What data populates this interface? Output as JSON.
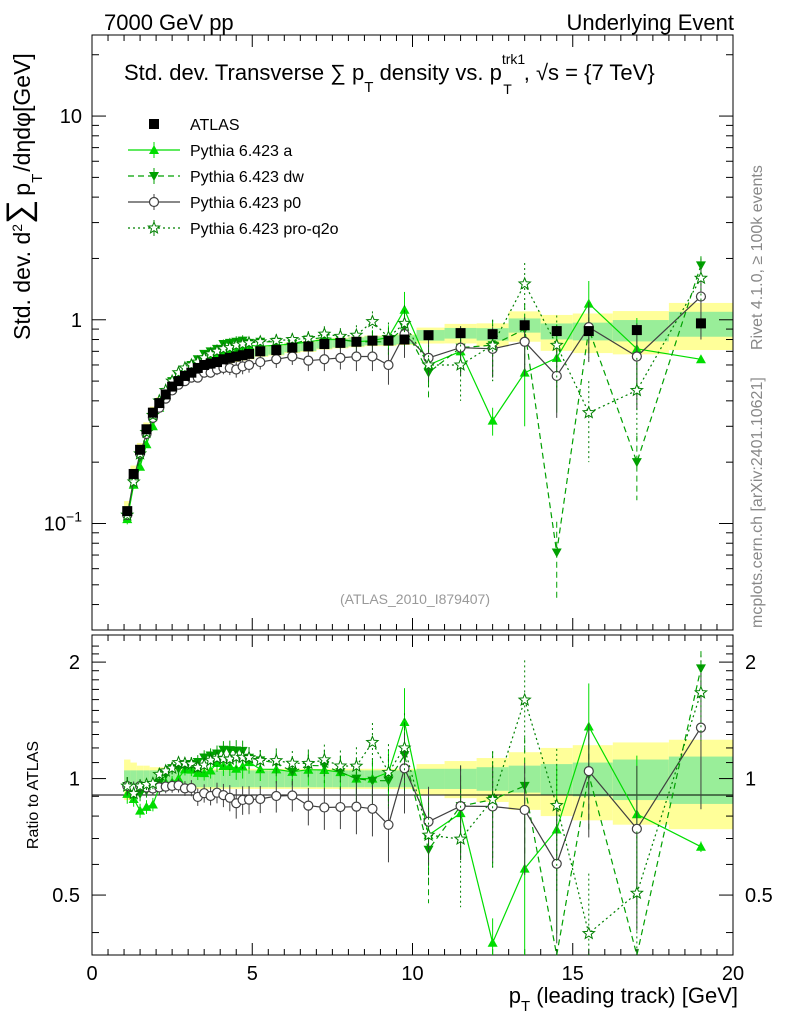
{
  "header": {
    "left": "7000 GeV pp",
    "right": "Underlying Event"
  },
  "side_labels": {
    "rivet": "Rivet 4.1.0, ≥ 100k events",
    "mcplots": "mcplots.cern.ch [arXiv:2401.10621]"
  },
  "analysis_id": "(ATLAS_2010_I879407)",
  "chart_data": {
    "type": "line",
    "title": {
      "main": "Std. dev. Transverse ∑ p",
      "sub": "T",
      "mid": " density vs. p",
      "sup": "trk1",
      "sub2": "T",
      "tail": ", √s = {7 TeV}"
    },
    "ylabel": "Std. dev. d² ∑ p_T /dηdφ[GeV]",
    "ylabel_parts": {
      "a": "Std. dev. d",
      "b": "2",
      "c": "∑",
      "d": "p",
      "e": "T",
      "f": "/dηdφ[GeV]"
    },
    "xlabel": {
      "p": "p",
      "sub": "T",
      "rest": " (leading track) [GeV]"
    },
    "ratio_ylabel": "Ratio to ATLAS",
    "xlim": [
      0,
      20
    ],
    "ylim": [
      0.03,
      25
    ],
    "ratio_ylim": [
      0.35,
      2.35
    ],
    "x_ticks": [
      "0",
      "5",
      "10",
      "15",
      "20"
    ],
    "y_ticks": [
      {
        "v": 0.1,
        "base": "10",
        "exp": "−1"
      },
      {
        "v": 1,
        "base": "1",
        "exp": ""
      },
      {
        "v": 10,
        "base": "10",
        "exp": ""
      }
    ],
    "ratio_ticks": [
      {
        "v": 0.5,
        "label": "0.5"
      },
      {
        "v": 1,
        "label": "1"
      },
      {
        "v": 2,
        "label": "2"
      }
    ],
    "x": [
      1.1,
      1.3,
      1.5,
      1.7,
      1.9,
      2.1,
      2.3,
      2.5,
      2.7,
      2.9,
      3.1,
      3.3,
      3.5,
      3.7,
      3.9,
      4.1,
      4.3,
      4.5,
      4.7,
      4.9,
      5.25,
      5.75,
      6.25,
      6.75,
      7.25,
      7.75,
      8.25,
      8.75,
      9.25,
      9.75,
      10.5,
      11.5,
      12.5,
      13.5,
      14.5,
      15.5,
      17.0,
      19.0
    ],
    "data": {
      "name": "ATLAS",
      "values": [
        0.115,
        0.175,
        0.23,
        0.29,
        0.35,
        0.39,
        0.43,
        0.47,
        0.5,
        0.53,
        0.55,
        0.58,
        0.6,
        0.61,
        0.62,
        0.64,
        0.65,
        0.66,
        0.67,
        0.68,
        0.7,
        0.71,
        0.73,
        0.74,
        0.76,
        0.77,
        0.78,
        0.79,
        0.79,
        0.8,
        0.84,
        0.86,
        0.85,
        0.94,
        0.88,
        0.88,
        0.89,
        0.96
      ],
      "band_inner": [
        0.05,
        0.05,
        0.05,
        0.05,
        0.05,
        0.05,
        0.05,
        0.05,
        0.05,
        0.05,
        0.05,
        0.05,
        0.05,
        0.05,
        0.05,
        0.05,
        0.05,
        0.05,
        0.05,
        0.05,
        0.05,
        0.05,
        0.05,
        0.05,
        0.05,
        0.05,
        0.05,
        0.05,
        0.05,
        0.05,
        0.06,
        0.06,
        0.07,
        0.08,
        0.09,
        0.1,
        0.12,
        0.14
      ],
      "band_outer": [
        0.12,
        0.1,
        0.08,
        0.08,
        0.07,
        0.07,
        0.07,
        0.06,
        0.06,
        0.06,
        0.06,
        0.06,
        0.06,
        0.06,
        0.06,
        0.06,
        0.06,
        0.06,
        0.06,
        0.06,
        0.06,
        0.06,
        0.06,
        0.06,
        0.06,
        0.06,
        0.06,
        0.06,
        0.06,
        0.06,
        0.09,
        0.11,
        0.13,
        0.17,
        0.2,
        0.22,
        0.24,
        0.26
      ],
      "style": {
        "color": "#000000",
        "marker": "square"
      }
    },
    "series": [
      {
        "name": "Pythia 6.423 a",
        "color": "#00dd00",
        "dash": "",
        "marker": "triangle-up",
        "fill": true,
        "values": [
          0.105,
          0.155,
          0.19,
          0.245,
          0.3,
          0.37,
          0.42,
          0.46,
          0.5,
          0.56,
          0.58,
          0.6,
          0.62,
          0.64,
          0.68,
          0.69,
          0.7,
          0.7,
          0.72,
          0.75,
          0.74,
          0.75,
          0.76,
          0.78,
          0.8,
          0.8,
          0.78,
          0.79,
          0.82,
          1.12,
          0.6,
          0.7,
          0.32,
          0.55,
          0.65,
          1.2,
          0.72,
          0.64
        ],
        "errors": [
          0.006,
          0.007,
          0.008,
          0.01,
          0.012,
          0.014,
          0.015,
          0.017,
          0.02,
          0.02,
          0.022,
          0.025,
          0.027,
          0.03,
          0.035,
          0.04,
          0.04,
          0.045,
          0.05,
          0.05,
          0.05,
          0.06,
          0.06,
          0.07,
          0.08,
          0.08,
          0.09,
          0.1,
          0.12,
          0.25,
          0.12,
          0.15,
          0.05,
          0.25,
          0.3,
          0.35,
          0.3,
          0.02
        ]
      },
      {
        "name": "Pythia 6.423 dw",
        "color": "#00a000",
        "dash": "6,4",
        "marker": "triangle-down",
        "fill": true,
        "values": [
          0.11,
          0.16,
          0.21,
          0.27,
          0.33,
          0.38,
          0.44,
          0.5,
          0.53,
          0.57,
          0.6,
          0.64,
          0.68,
          0.7,
          0.72,
          0.76,
          0.77,
          0.78,
          0.79,
          0.77,
          0.78,
          0.78,
          0.76,
          0.8,
          0.82,
          0.8,
          0.78,
          0.78,
          0.78,
          0.92,
          0.55,
          0.73,
          0.75,
          0.9,
          0.072,
          0.9,
          0.2,
          1.85
        ],
        "errors": [
          0.006,
          0.007,
          0.009,
          0.011,
          0.013,
          0.015,
          0.016,
          0.018,
          0.02,
          0.022,
          0.025,
          0.027,
          0.03,
          0.03,
          0.035,
          0.04,
          0.045,
          0.05,
          0.05,
          0.05,
          0.05,
          0.06,
          0.06,
          0.07,
          0.08,
          0.08,
          0.1,
          0.1,
          0.12,
          0.2,
          0.15,
          0.2,
          0.25,
          0.3,
          0.03,
          0.25,
          0.07,
          0.2
        ]
      },
      {
        "name": "Pythia 6.423 p0",
        "color": "#404040",
        "dash": "",
        "marker": "circle",
        "fill": false,
        "values": [
          0.11,
          0.165,
          0.22,
          0.275,
          0.33,
          0.37,
          0.41,
          0.45,
          0.48,
          0.5,
          0.52,
          0.52,
          0.55,
          0.55,
          0.57,
          0.58,
          0.58,
          0.57,
          0.59,
          0.6,
          0.62,
          0.64,
          0.66,
          0.63,
          0.64,
          0.65,
          0.66,
          0.66,
          0.6,
          0.85,
          0.65,
          0.73,
          0.72,
          0.78,
          0.53,
          0.92,
          0.66,
          1.3
        ],
        "errors": [
          0.006,
          0.007,
          0.009,
          0.011,
          0.013,
          0.015,
          0.016,
          0.018,
          0.02,
          0.022,
          0.025,
          0.027,
          0.03,
          0.03,
          0.035,
          0.04,
          0.045,
          0.05,
          0.05,
          0.05,
          0.05,
          0.06,
          0.06,
          0.07,
          0.08,
          0.08,
          0.1,
          0.1,
          0.12,
          0.2,
          0.15,
          0.2,
          0.2,
          0.25,
          0.2,
          0.3,
          0.3,
          0.5
        ]
      },
      {
        "name": "Pythia 6.423 pro-q2o",
        "color": "#008000",
        "dash": "2,3",
        "marker": "star",
        "fill": false,
        "values": [
          0.11,
          0.16,
          0.22,
          0.28,
          0.34,
          0.4,
          0.45,
          0.5,
          0.55,
          0.58,
          0.6,
          0.62,
          0.65,
          0.68,
          0.7,
          0.72,
          0.73,
          0.75,
          0.76,
          0.77,
          0.78,
          0.79,
          0.8,
          0.81,
          0.85,
          0.83,
          0.84,
          0.98,
          0.82,
          0.96,
          0.6,
          0.6,
          0.75,
          1.5,
          0.75,
          0.35,
          0.45,
          1.6
        ],
        "errors": [
          0.006,
          0.007,
          0.009,
          0.011,
          0.013,
          0.015,
          0.016,
          0.018,
          0.02,
          0.022,
          0.025,
          0.027,
          0.03,
          0.03,
          0.035,
          0.04,
          0.045,
          0.05,
          0.05,
          0.05,
          0.05,
          0.06,
          0.06,
          0.07,
          0.08,
          0.08,
          0.1,
          0.12,
          0.15,
          0.22,
          0.15,
          0.2,
          0.25,
          0.4,
          0.3,
          0.15,
          0.2,
          0.4
        ]
      }
    ]
  }
}
